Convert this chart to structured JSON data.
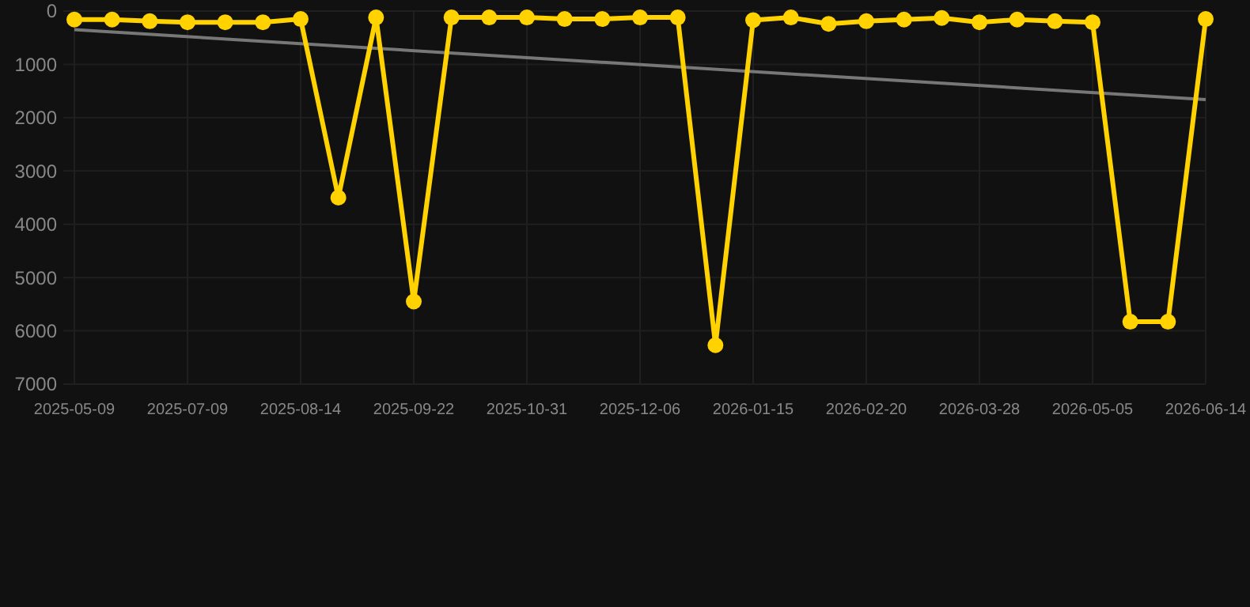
{
  "chart_data": {
    "type": "line",
    "categories": [
      "2025-05-09",
      null,
      null,
      "2025-07-09",
      null,
      null,
      "2025-08-14",
      null,
      null,
      "2025-09-22",
      null,
      null,
      "2025-10-31",
      null,
      null,
      "2025-12-06",
      null,
      null,
      "2026-01-15",
      null,
      null,
      "2026-02-20",
      null,
      null,
      "2026-03-28",
      null,
      null,
      "2026-05-05",
      null,
      null,
      "2026-06-14"
    ],
    "series": [
      {
        "color": "#ffd200",
        "marker": "circle",
        "values": [
          160,
          160,
          190,
          210,
          210,
          210,
          150,
          3500,
          120,
          5450,
          120,
          120,
          120,
          150,
          150,
          120,
          120,
          6270,
          170,
          120,
          240,
          190,
          160,
          130,
          210,
          160,
          190,
          210,
          5830,
          5830,
          150
        ]
      },
      {
        "type": "line",
        "color": "#777777",
        "marker": "none",
        "values": [
          350,
          null,
          null,
          null,
          null,
          null,
          null,
          null,
          null,
          null,
          null,
          null,
          null,
          null,
          null,
          null,
          null,
          null,
          null,
          null,
          null,
          null,
          null,
          null,
          null,
          null,
          null,
          null,
          null,
          null,
          1660
        ]
      }
    ],
    "ylim": [
      7000,
      0
    ],
    "yticks": [
      0,
      1000,
      2000,
      3000,
      4000,
      5000,
      6000,
      7000
    ],
    "grid": true
  }
}
